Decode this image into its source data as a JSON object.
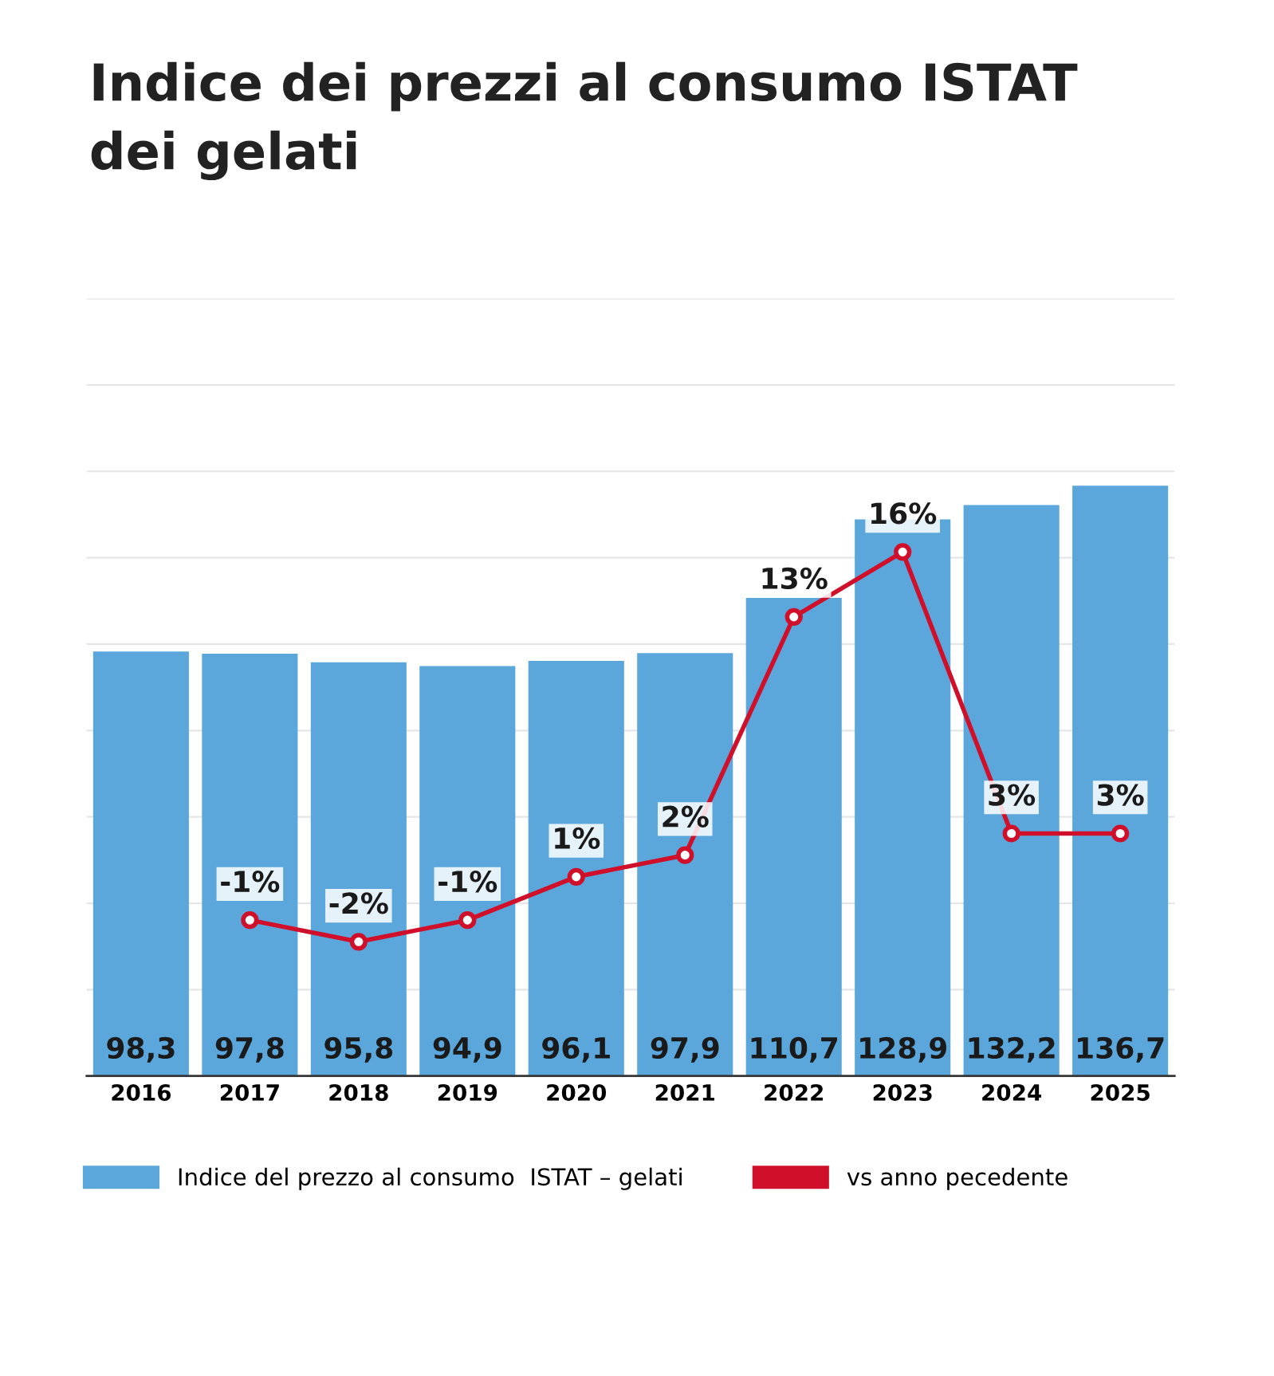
{
  "chart_data": {
    "type": "bar",
    "title": "Indice dei prezzi al consumo ISTAT\ndei gelati",
    "categories": [
      "2016",
      "2017",
      "2018",
      "2019",
      "2020",
      "2021",
      "2022",
      "2023",
      "2024",
      "2025"
    ],
    "series": [
      {
        "name": "Indice del prezzo al consumo  ISTAT – gelati",
        "color": "#5ba7db",
        "values": [
          98.3,
          97.8,
          95.8,
          94.9,
          96.1,
          97.9,
          110.7,
          128.9,
          132.2,
          136.7
        ],
        "value_labels": [
          "98,3",
          "97,8",
          "95,8",
          "94,9",
          "96,1",
          "97,9",
          "110,7",
          "128,9",
          "132,2",
          "136,7"
        ]
      },
      {
        "name": "vs anno pecedente",
        "type": "line",
        "axis": "y2",
        "color": "#d0102a",
        "marker": "circle",
        "values": [
          null,
          -1,
          -2,
          -1,
          1,
          2,
          13,
          16,
          3,
          3
        ],
        "value_labels": [
          null,
          "-1%",
          "-2%",
          "-1%",
          "1%",
          "2%",
          "13%",
          "16%",
          "3%",
          "3%"
        ]
      }
    ],
    "ylim": [
      0,
      180
    ],
    "yticks": [
      {
        "value": 0,
        "label": null
      },
      {
        "value": 20,
        "label": null
      },
      {
        "value": 40,
        "label": null
      },
      {
        "value": 60,
        "label": null
      },
      {
        "value": 80,
        "label": null
      },
      {
        "value": 100,
        "label": null
      },
      {
        "value": 120,
        "label": null
      },
      {
        "value": 140,
        "label": null
      },
      {
        "value": 160,
        "label": null
      },
      {
        "value": 180,
        "label": null
      }
    ],
    "y2lim": [
      -8.2,
      27.7
    ],
    "grid": "y",
    "tick_labels": "x",
    "legend": "bottom"
  }
}
